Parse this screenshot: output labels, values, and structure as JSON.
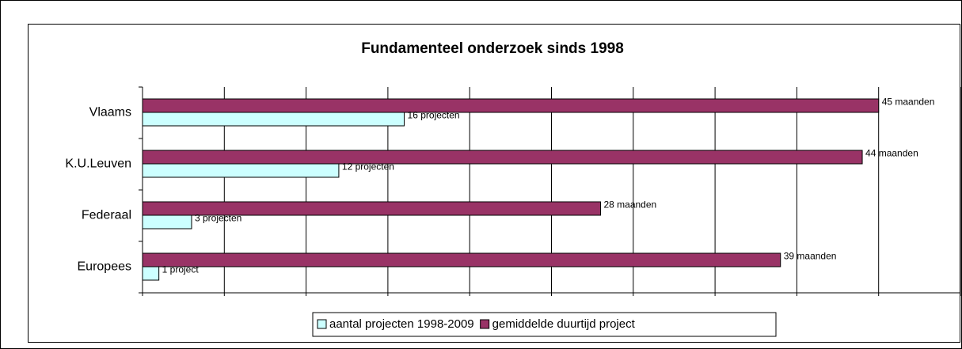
{
  "chart_data": {
    "type": "barh",
    "title": "Fundamenteel onderzoek sinds 1998",
    "categories": [
      "Vlaams",
      "K.U.Leuven",
      "Federaal",
      "Europees"
    ],
    "series": [
      {
        "name": "aantal projecten 1998-2009",
        "color": "#ccffff",
        "values": [
          16,
          12,
          3,
          1
        ],
        "value_labels": [
          "16 projecten",
          "12 projecten",
          "3 projecten",
          "1 project"
        ]
      },
      {
        "name": "gemiddelde duurtijd project",
        "color": "#993366",
        "values": [
          45,
          44,
          28,
          39
        ],
        "value_labels": [
          "45 maanden",
          "44 maanden",
          "28 maanden",
          "39 maanden"
        ]
      }
    ],
    "xlim": [
      0,
      50
    ],
    "xticks": [
      0,
      5,
      10,
      15,
      20,
      25,
      30,
      35,
      40,
      45,
      50
    ],
    "grid": true,
    "legend": "bottom"
  }
}
